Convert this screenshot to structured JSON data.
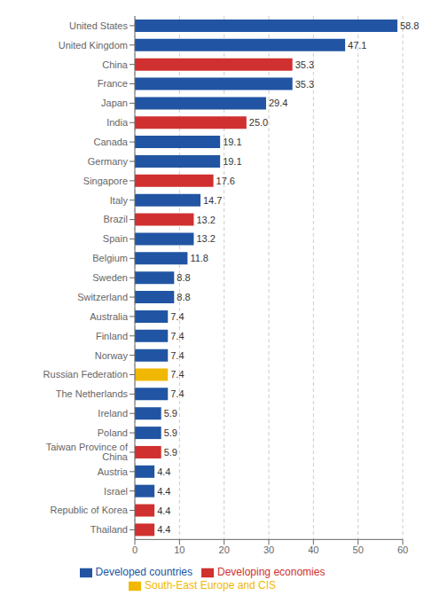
{
  "chart_data": {
    "type": "bar",
    "orientation": "horizontal",
    "stacked": true,
    "data_labels": true,
    "grid": true,
    "legend": "bottom",
    "categories": [
      "United States",
      "United Kingdom",
      "China",
      "France",
      "Japan",
      "India",
      "Canada",
      "Germany",
      "Singapore",
      "Italy",
      "Brazil",
      "Spain",
      "Belgium",
      "Sweden",
      "Switzerland",
      "Australia",
      "Finland",
      "Norway",
      "Russian Federation",
      "The Netherlands",
      "Ireland",
      "Poland",
      "Taiwan Province of China",
      "Austria",
      "Israel",
      "Republic of Korea",
      "Thailand"
    ],
    "series": [
      {
        "name": "Developed countries",
        "color": "#2155A3",
        "values": [
          58.8,
          47.1,
          null,
          35.3,
          29.4,
          null,
          19.1,
          19.1,
          null,
          14.7,
          null,
          13.2,
          11.8,
          8.8,
          8.8,
          7.4,
          7.4,
          7.4,
          null,
          7.4,
          5.9,
          5.9,
          null,
          4.4,
          4.4,
          null,
          null
        ],
        "value_labels": [
          "58.8",
          "47.1",
          null,
          "35.3",
          "29.4",
          null,
          "19.1",
          "19.1",
          null,
          "14.7",
          null,
          "13.2",
          "11.8",
          "8.8",
          "8.8",
          "7.4",
          "7.4",
          "7.4",
          null,
          "7.4",
          "5.9",
          "5.9",
          null,
          "4.4",
          "4.4",
          null,
          null
        ]
      },
      {
        "name": "Developing economies",
        "color": "#d03030",
        "values": [
          null,
          null,
          35.3,
          null,
          null,
          25.0,
          null,
          null,
          17.6,
          null,
          13.2,
          null,
          null,
          null,
          null,
          null,
          null,
          null,
          null,
          null,
          null,
          null,
          5.9,
          null,
          null,
          4.4,
          4.4
        ],
        "value_labels": [
          null,
          null,
          "35.3",
          null,
          null,
          "25.0",
          null,
          null,
          "17.6",
          null,
          "13.2",
          null,
          null,
          null,
          null,
          null,
          null,
          null,
          null,
          null,
          null,
          null,
          "5.9",
          null,
          null,
          "4.4",
          "4.4"
        ]
      },
      {
        "name": "South-East Europe and CIS",
        "color": "#f0b800",
        "values": [
          null,
          null,
          null,
          null,
          null,
          null,
          null,
          null,
          null,
          null,
          null,
          null,
          null,
          null,
          null,
          null,
          null,
          null,
          7.4,
          null,
          null,
          null,
          null,
          null,
          null,
          null,
          null
        ],
        "value_labels": [
          null,
          null,
          null,
          null,
          null,
          null,
          null,
          null,
          null,
          null,
          null,
          null,
          null,
          null,
          null,
          null,
          null,
          null,
          "7.4",
          null,
          null,
          null,
          null,
          null,
          null,
          null,
          null
        ]
      }
    ],
    "xlim": [
      0,
      60
    ],
    "xticks": [
      0,
      10,
      20,
      30,
      40,
      50,
      60
    ]
  }
}
